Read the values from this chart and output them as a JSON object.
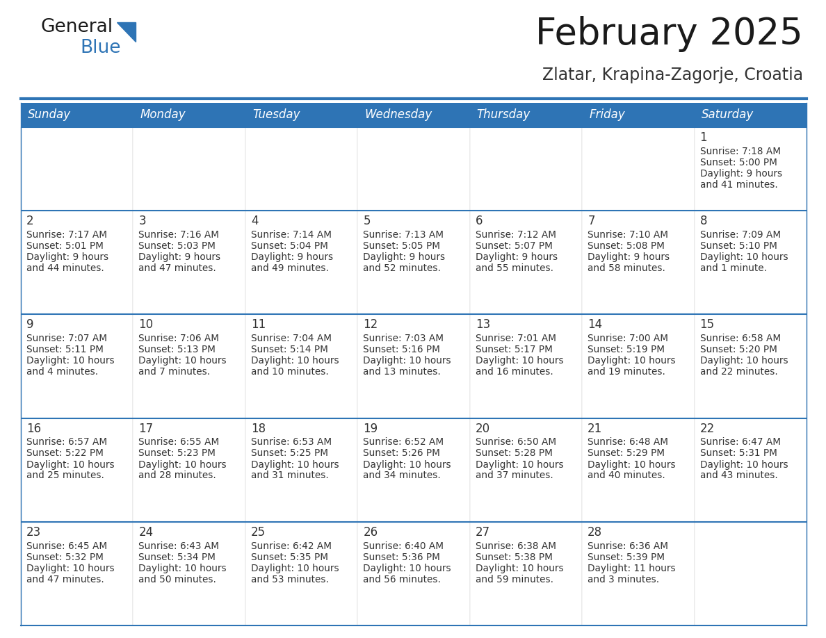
{
  "title": "February 2025",
  "subtitle": "Zlatar, Krapina-Zagorje, Croatia",
  "days_of_week": [
    "Sunday",
    "Monday",
    "Tuesday",
    "Wednesday",
    "Thursday",
    "Friday",
    "Saturday"
  ],
  "header_bg": "#2E74B5",
  "header_text": "#FFFFFF",
  "row_bg": "#FFFFFF",
  "cell_text": "#333333",
  "border_color": "#2E74B5",
  "title_color": "#1a1a1a",
  "subtitle_color": "#333333",
  "day_num_color": "#333333",
  "calendar": [
    [
      null,
      null,
      null,
      null,
      null,
      null,
      {
        "day": 1,
        "sunrise": "7:18 AM",
        "sunset": "5:00 PM",
        "daylight": "9 hours",
        "daylight2": "and 41 minutes."
      }
    ],
    [
      {
        "day": 2,
        "sunrise": "7:17 AM",
        "sunset": "5:01 PM",
        "daylight": "9 hours",
        "daylight2": "and 44 minutes."
      },
      {
        "day": 3,
        "sunrise": "7:16 AM",
        "sunset": "5:03 PM",
        "daylight": "9 hours",
        "daylight2": "and 47 minutes."
      },
      {
        "day": 4,
        "sunrise": "7:14 AM",
        "sunset": "5:04 PM",
        "daylight": "9 hours",
        "daylight2": "and 49 minutes."
      },
      {
        "day": 5,
        "sunrise": "7:13 AM",
        "sunset": "5:05 PM",
        "daylight": "9 hours",
        "daylight2": "and 52 minutes."
      },
      {
        "day": 6,
        "sunrise": "7:12 AM",
        "sunset": "5:07 PM",
        "daylight": "9 hours",
        "daylight2": "and 55 minutes."
      },
      {
        "day": 7,
        "sunrise": "7:10 AM",
        "sunset": "5:08 PM",
        "daylight": "9 hours",
        "daylight2": "and 58 minutes."
      },
      {
        "day": 8,
        "sunrise": "7:09 AM",
        "sunset": "5:10 PM",
        "daylight": "10 hours",
        "daylight2": "and 1 minute."
      }
    ],
    [
      {
        "day": 9,
        "sunrise": "7:07 AM",
        "sunset": "5:11 PM",
        "daylight": "10 hours",
        "daylight2": "and 4 minutes."
      },
      {
        "day": 10,
        "sunrise": "7:06 AM",
        "sunset": "5:13 PM",
        "daylight": "10 hours",
        "daylight2": "and 7 minutes."
      },
      {
        "day": 11,
        "sunrise": "7:04 AM",
        "sunset": "5:14 PM",
        "daylight": "10 hours",
        "daylight2": "and 10 minutes."
      },
      {
        "day": 12,
        "sunrise": "7:03 AM",
        "sunset": "5:16 PM",
        "daylight": "10 hours",
        "daylight2": "and 13 minutes."
      },
      {
        "day": 13,
        "sunrise": "7:01 AM",
        "sunset": "5:17 PM",
        "daylight": "10 hours",
        "daylight2": "and 16 minutes."
      },
      {
        "day": 14,
        "sunrise": "7:00 AM",
        "sunset": "5:19 PM",
        "daylight": "10 hours",
        "daylight2": "and 19 minutes."
      },
      {
        "day": 15,
        "sunrise": "6:58 AM",
        "sunset": "5:20 PM",
        "daylight": "10 hours",
        "daylight2": "and 22 minutes."
      }
    ],
    [
      {
        "day": 16,
        "sunrise": "6:57 AM",
        "sunset": "5:22 PM",
        "daylight": "10 hours",
        "daylight2": "and 25 minutes."
      },
      {
        "day": 17,
        "sunrise": "6:55 AM",
        "sunset": "5:23 PM",
        "daylight": "10 hours",
        "daylight2": "and 28 minutes."
      },
      {
        "day": 18,
        "sunrise": "6:53 AM",
        "sunset": "5:25 PM",
        "daylight": "10 hours",
        "daylight2": "and 31 minutes."
      },
      {
        "day": 19,
        "sunrise": "6:52 AM",
        "sunset": "5:26 PM",
        "daylight": "10 hours",
        "daylight2": "and 34 minutes."
      },
      {
        "day": 20,
        "sunrise": "6:50 AM",
        "sunset": "5:28 PM",
        "daylight": "10 hours",
        "daylight2": "and 37 minutes."
      },
      {
        "day": 21,
        "sunrise": "6:48 AM",
        "sunset": "5:29 PM",
        "daylight": "10 hours",
        "daylight2": "and 40 minutes."
      },
      {
        "day": 22,
        "sunrise": "6:47 AM",
        "sunset": "5:31 PM",
        "daylight": "10 hours",
        "daylight2": "and 43 minutes."
      }
    ],
    [
      {
        "day": 23,
        "sunrise": "6:45 AM",
        "sunset": "5:32 PM",
        "daylight": "10 hours",
        "daylight2": "and 47 minutes."
      },
      {
        "day": 24,
        "sunrise": "6:43 AM",
        "sunset": "5:34 PM",
        "daylight": "10 hours",
        "daylight2": "and 50 minutes."
      },
      {
        "day": 25,
        "sunrise": "6:42 AM",
        "sunset": "5:35 PM",
        "daylight": "10 hours",
        "daylight2": "and 53 minutes."
      },
      {
        "day": 26,
        "sunrise": "6:40 AM",
        "sunset": "5:36 PM",
        "daylight": "10 hours",
        "daylight2": "and 56 minutes."
      },
      {
        "day": 27,
        "sunrise": "6:38 AM",
        "sunset": "5:38 PM",
        "daylight": "10 hours",
        "daylight2": "and 59 minutes."
      },
      {
        "day": 28,
        "sunrise": "6:36 AM",
        "sunset": "5:39 PM",
        "daylight": "11 hours",
        "daylight2": "and 3 minutes."
      },
      null
    ]
  ],
  "logo_general_color": "#1a1a1a",
  "logo_blue_color": "#2E74B5",
  "logo_triangle_color": "#2E74B5",
  "fig_width": 11.88,
  "fig_height": 9.18,
  "dpi": 100
}
